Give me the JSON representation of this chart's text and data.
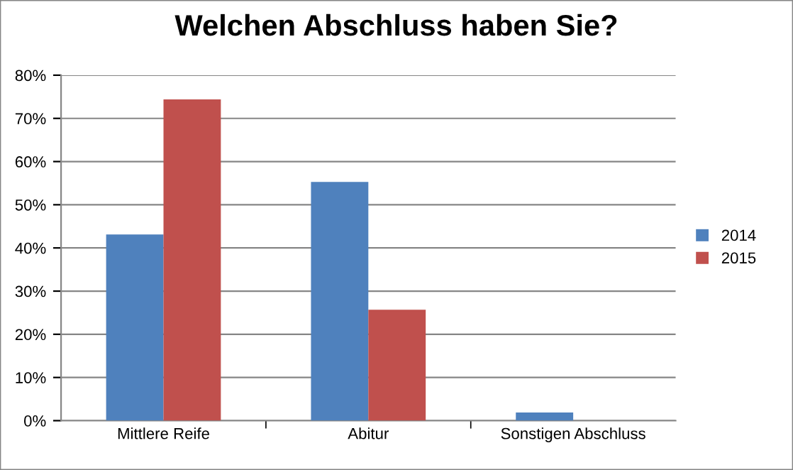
{
  "chart_data": {
    "type": "bar",
    "title": "Welchen Abschluss haben Sie?",
    "categories": [
      "Mittlere Reife",
      "Abitur",
      "Sonstigen Abschluss"
    ],
    "series": [
      {
        "name": "2014",
        "color": "#4f81bd",
        "values": [
          43.1,
          55.3,
          1.9
        ]
      },
      {
        "name": "2015",
        "color": "#c0504d",
        "values": [
          74.4,
          25.7,
          0
        ]
      }
    ],
    "ylim": [
      0,
      80
    ],
    "yticks": [
      {
        "value": 0,
        "label": "0%"
      },
      {
        "value": 10,
        "label": "10%"
      },
      {
        "value": 20,
        "label": "20%"
      },
      {
        "value": 30,
        "label": "30%"
      },
      {
        "value": 40,
        "label": "40%"
      },
      {
        "value": 50,
        "label": "50%"
      },
      {
        "value": 60,
        "label": "60%"
      },
      {
        "value": 70,
        "label": "70%"
      },
      {
        "value": 80,
        "label": "80%"
      }
    ],
    "grid": "y",
    "legend": "right"
  }
}
